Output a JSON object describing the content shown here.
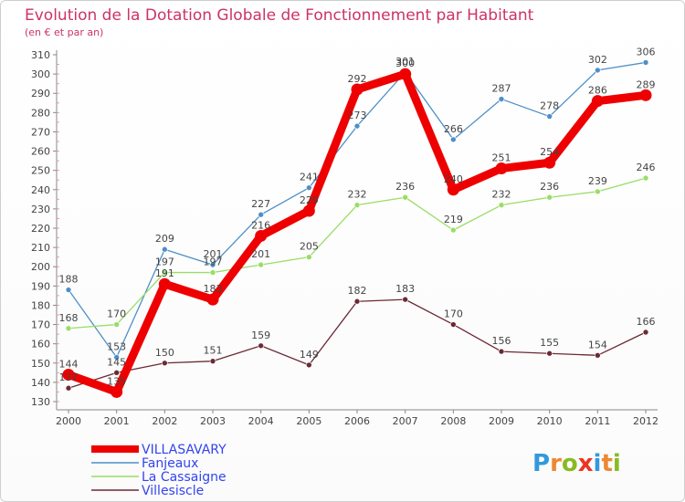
{
  "chart_data": {
    "type": "line",
    "title": "Evolution de la Dotation Globale de Fonctionnement par Habitant",
    "subtitle": "(en € et par an)",
    "x": [
      "2000",
      "2001",
      "2002",
      "2003",
      "2004",
      "2005",
      "2006",
      "2007",
      "2008",
      "2009",
      "2010",
      "2011",
      "2012"
    ],
    "ylim": [
      130,
      310
    ],
    "yticks": [
      130,
      140,
      150,
      160,
      170,
      180,
      190,
      200,
      210,
      220,
      230,
      240,
      250,
      260,
      270,
      280,
      290,
      300,
      310
    ],
    "grid": false,
    "legend_position": "bottom-left",
    "series": [
      {
        "name": "Fanjeaux",
        "color": "#4f8fc8",
        "values": [
          188,
          153,
          209,
          201,
          227,
          241,
          273,
          301,
          266,
          287,
          278,
          302,
          306
        ]
      },
      {
        "name": "La Cassaigne",
        "color": "#99dd66",
        "values": [
          168,
          170,
          197,
          197,
          201,
          205,
          232,
          236,
          219,
          232,
          236,
          239,
          246
        ]
      },
      {
        "name": "Villesiscle",
        "color": "#6b2a35",
        "values": [
          137,
          145,
          150,
          151,
          159,
          149,
          182,
          183,
          170,
          156,
          155,
          154,
          166
        ]
      },
      {
        "name": "VILLASAVARY",
        "color": "#ee0000",
        "values": [
          144,
          135,
          191,
          183,
          216,
          229,
          292,
          300,
          240,
          251,
          254,
          286,
          289
        ]
      }
    ],
    "legend_order": [
      "VILLASAVARY",
      "Fanjeaux",
      "La Cassaigne",
      "Villesiscle"
    ]
  },
  "brand": {
    "letters": [
      "P",
      "r",
      "o",
      "x",
      "i",
      "t",
      "i"
    ],
    "colors": [
      "#3399dd",
      "#ee8833",
      "#88bb22",
      "#ee3322",
      "#3399dd",
      "#ee8833",
      "#88bb22"
    ]
  }
}
